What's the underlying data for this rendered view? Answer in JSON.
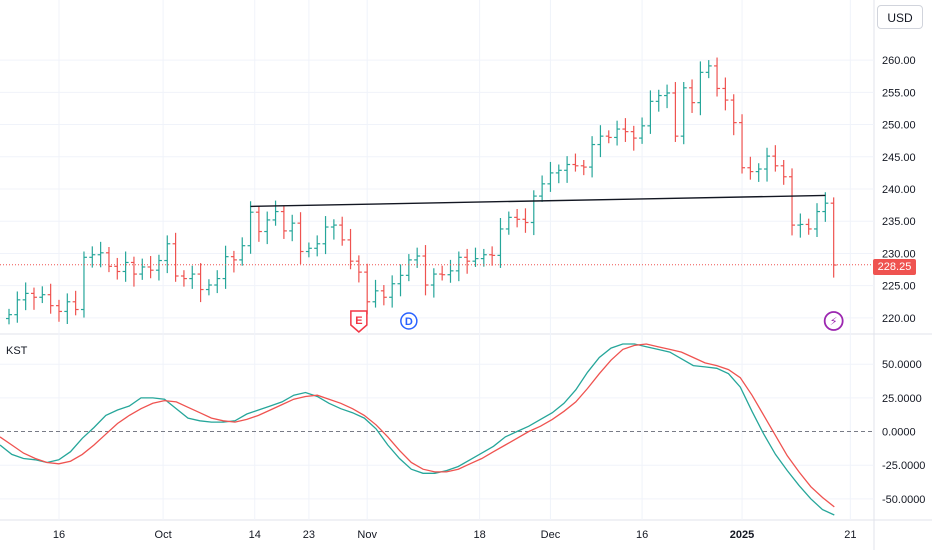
{
  "currency_button": "USD",
  "indicator_label": "KST",
  "last_price_label": "228.25",
  "colors": {
    "up": "#26a69a",
    "down": "#ef5350",
    "kst": "#26a69a",
    "signal": "#ef5350",
    "grid": "#f0f3fa",
    "trendline": "#131722",
    "earnings": "#f23645",
    "dividend": "#2962ff",
    "news": "#9c27b0"
  },
  "chart_data": [
    {
      "type": "candlestick",
      "title": "",
      "y_ticks": [
        "260.00",
        "255.00",
        "250.00",
        "245.00",
        "240.00",
        "235.00",
        "230.00",
        "225.00",
        "220.00"
      ],
      "ylim": [
        217.5,
        262.5
      ],
      "x_ticks": [
        {
          "label": "16",
          "bar": 6
        },
        {
          "label": "Oct",
          "bar": 18.5
        },
        {
          "label": "14",
          "bar": 29.5
        },
        {
          "label": "23",
          "bar": 36
        },
        {
          "label": "Nov",
          "bar": 43
        },
        {
          "label": "18",
          "bar": 56.5
        },
        {
          "label": "Dec",
          "bar": 65
        },
        {
          "label": "16",
          "bar": 76
        },
        {
          "label": "2025",
          "bar": 88
        },
        {
          "label": "21",
          "bar": 101
        }
      ],
      "last_price": 228.25,
      "closes": [
        220.5,
        222.8,
        223.8,
        223.2,
        223.6,
        221.9,
        221.0,
        222.5,
        221.3,
        229.4,
        229.8,
        230.1,
        228.0,
        227.2,
        228.6,
        226.8,
        227.9,
        227.4,
        228.9,
        231.5,
        226.5,
        226.1,
        226.8,
        224.4,
        225.1,
        226.1,
        229.5,
        229.0,
        231.2,
        236.4,
        233.4,
        235.2,
        236.5,
        233.5,
        234.7,
        230.3,
        230.8,
        231.5,
        234.1,
        234.4,
        232.1,
        228.8,
        227.1,
        222.5,
        224.2,
        223.2,
        225.3,
        226.6,
        229.0,
        229.6,
        225.1,
        226.8,
        226.7,
        227.3,
        229.4,
        228.8,
        229.2,
        229.8,
        229.7,
        233.8,
        235.6,
        235.3,
        234.8,
        238.9,
        240.8,
        242.5,
        242.9,
        243.8,
        243.6,
        243.4,
        246.9,
        248.2,
        248.0,
        249.3,
        248.9,
        247.9,
        249.8,
        253.6,
        254.5,
        254.9,
        248.2,
        255.7,
        253.4,
        258.1,
        259.1,
        255.6,
        253.8,
        250.3,
        243.3,
        242.7,
        243.1,
        245.1,
        243.6,
        241.9,
        234.4,
        234.5,
        233.8,
        236.5,
        237.8,
        228.2
      ],
      "trendline": {
        "from_bar": 29,
        "from_value": 237.3,
        "to_bar": 98,
        "to_value": 239.0
      },
      "markers": [
        {
          "kind": "earnings",
          "label": "E",
          "bar": 42
        },
        {
          "kind": "dividend",
          "label": "D",
          "bar": 48
        },
        {
          "kind": "news",
          "label": "⚡",
          "bar": 99
        }
      ]
    },
    {
      "type": "line",
      "title": "KST",
      "y_ticks": [
        "50.0000",
        "25.0000",
        "0.0000",
        "-25.0000",
        "-50.0000"
      ],
      "ylim": [
        -62,
        68
      ],
      "series": [
        {
          "name": "",
          "values": [
            -10,
            -17,
            -20,
            -21,
            -23,
            -21,
            -15,
            -5,
            3,
            12,
            16,
            19,
            25,
            25,
            24,
            17,
            10,
            8,
            7,
            7,
            8,
            13,
            16,
            19,
            22,
            27,
            29,
            26,
            21,
            17,
            14,
            10,
            2,
            -10,
            -20,
            -28,
            -31,
            -31,
            -29,
            -26,
            -21,
            -16,
            -11,
            -4,
            0,
            4,
            9,
            14,
            21,
            31,
            44,
            55,
            62,
            65,
            65,
            63,
            61,
            59,
            54,
            49,
            48,
            47,
            43,
            33,
            15,
            -2,
            -17,
            -29,
            -40,
            -50,
            -58,
            -62
          ]
        },
        {
          "name": "",
          "values": [
            -4,
            -10,
            -16,
            -20,
            -23,
            -24,
            -22,
            -17,
            -10,
            -2,
            6,
            12,
            17,
            21,
            23,
            22,
            18,
            14,
            10,
            8,
            7,
            9,
            12,
            16,
            20,
            24,
            26,
            27,
            24,
            21,
            17,
            12,
            5,
            -4,
            -14,
            -23,
            -28,
            -30,
            -30,
            -28,
            -24,
            -20,
            -15,
            -10,
            -5,
            0,
            4,
            9,
            15,
            22,
            32,
            43,
            53,
            61,
            64,
            65,
            63,
            61,
            59,
            55,
            51,
            49,
            46,
            40,
            27,
            12,
            -3,
            -18,
            -30,
            -41,
            -49,
            -56
          ]
        }
      ]
    }
  ]
}
